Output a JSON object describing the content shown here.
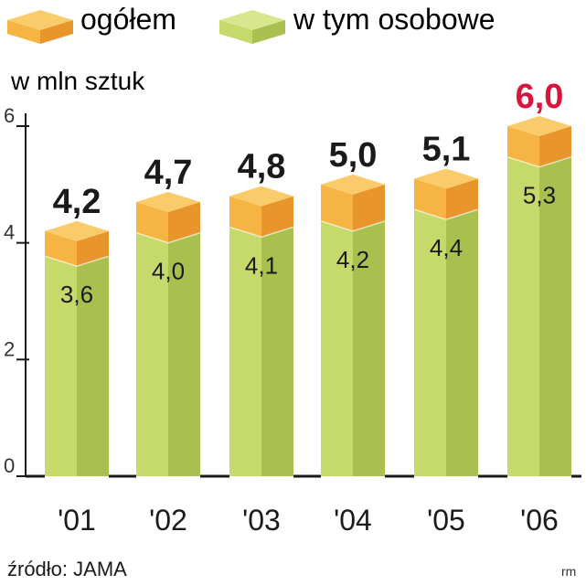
{
  "legend": {
    "total": "ogółem",
    "passenger": "w tym osobowe"
  },
  "unit": "w mln sztuk",
  "source": "źródło: JAMA",
  "credit": "rm",
  "colors": {
    "total_front": "#f6b443",
    "total_side": "#e8952c",
    "total_top": "#f9cb6b",
    "passenger_front": "#c6d96b",
    "passenger_side": "#a9c04f",
    "passenger_top": "#d8e68e",
    "highlight": "#d8153f"
  },
  "chart_data": {
    "type": "bar",
    "categories": [
      "'01",
      "'02",
      "'03",
      "'04",
      "'05",
      "'06"
    ],
    "series": [
      {
        "name": "ogółem",
        "values": [
          4.2,
          4.7,
          4.8,
          5.0,
          5.1,
          6.0
        ],
        "labels": [
          "4,2",
          "4,7",
          "4,8",
          "5,0",
          "5,1",
          "6,0"
        ]
      },
      {
        "name": "w tym osobowe",
        "values": [
          3.6,
          4.0,
          4.1,
          4.2,
          4.4,
          5.3
        ],
        "labels": [
          "3,6",
          "4,0",
          "4,1",
          "4,2",
          "4,4",
          "5,3"
        ]
      }
    ],
    "yticks": [
      "0",
      "2",
      "4",
      "6"
    ],
    "ylim": [
      0,
      6
    ],
    "highlight_index": 5,
    "grid": false,
    "legend": "top"
  }
}
